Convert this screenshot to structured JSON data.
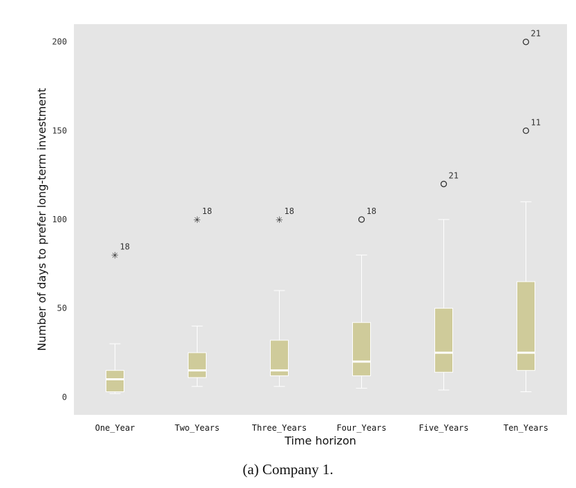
{
  "chart_data": {
    "type": "box",
    "xlabel": "Time horizon",
    "ylabel": "Number of days to prefer long-term investment",
    "ylim": [
      -10,
      210
    ],
    "yticks": [
      0,
      50,
      100,
      150,
      200
    ],
    "grid": false,
    "categories": [
      "One_Year",
      "Two_Years",
      "Three_Years",
      "Four_Years",
      "Five_Years",
      "Ten_Years"
    ],
    "boxes": [
      {
        "min": 2,
        "q1": 3,
        "median": 10,
        "q3": 15,
        "max": 30,
        "outliers": [
          {
            "value": 80,
            "marker": "star",
            "label": "18"
          }
        ]
      },
      {
        "min": 6,
        "q1": 11,
        "median": 15,
        "q3": 25,
        "max": 40,
        "outliers": [
          {
            "value": 100,
            "marker": "star",
            "label": "18"
          }
        ]
      },
      {
        "min": 6,
        "q1": 12,
        "median": 15,
        "q3": 32,
        "max": 60,
        "outliers": [
          {
            "value": 100,
            "marker": "star",
            "label": "18"
          }
        ]
      },
      {
        "min": 5,
        "q1": 12,
        "median": 20,
        "q3": 42,
        "max": 80,
        "outliers": [
          {
            "value": 100,
            "marker": "circle",
            "label": "18"
          }
        ]
      },
      {
        "min": 4,
        "q1": 14,
        "median": 25,
        "q3": 50,
        "max": 100,
        "outliers": [
          {
            "value": 120,
            "marker": "circle",
            "label": "21"
          }
        ]
      },
      {
        "min": 3,
        "q1": 15,
        "median": 25,
        "q3": 65,
        "max": 110,
        "outliers": [
          {
            "value": 150,
            "marker": "circle",
            "label": "11"
          },
          {
            "value": 200,
            "marker": "circle",
            "label": "21"
          }
        ]
      }
    ]
  },
  "caption": "(a) Company 1.",
  "colors": {
    "panel_bg": "#e5e5e5",
    "box_fill": "#cfcb9a",
    "box_line": "#ffffff",
    "outlier": "#333333"
  }
}
